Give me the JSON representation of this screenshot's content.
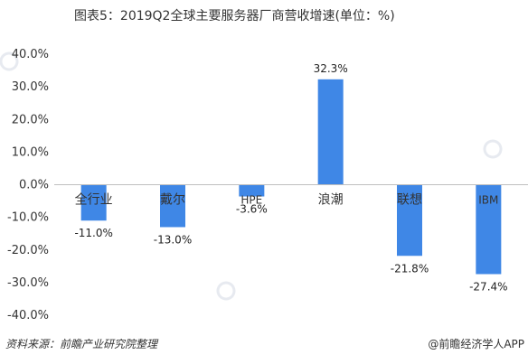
{
  "chart_data": {
    "type": "bar",
    "title": "图表5：2019Q2全球主要服务器厂商营收增速(单位：%)",
    "categories": [
      "全行业",
      "戴尔",
      "HPE",
      "浪潮",
      "联想",
      "IBM"
    ],
    "values": [
      -11.0,
      -13.0,
      -3.6,
      32.3,
      -21.8,
      -27.4
    ],
    "value_labels": [
      "-11.0%",
      "-13.0%",
      "-3.6%",
      "32.3%",
      "-21.8%",
      "-27.4%"
    ],
    "ylim": [
      -40,
      40
    ],
    "yticks": [
      40,
      30,
      20,
      10,
      0,
      -10,
      -20,
      -30,
      -40
    ],
    "ytick_labels": [
      "40.0%",
      "30.0%",
      "20.0%",
      "10.0%",
      "0.0%",
      "-10.0%",
      "-20.0%",
      "-30.0%",
      "-40.0%"
    ],
    "xlabel": "",
    "ylabel": "",
    "grid": false,
    "bar_color": "#3f87e6",
    "axis_color": "#bfbfbf"
  },
  "footer": {
    "source": "资料来源：前瞻产业研究院整理",
    "brand": "@前瞻经济学人APP"
  }
}
